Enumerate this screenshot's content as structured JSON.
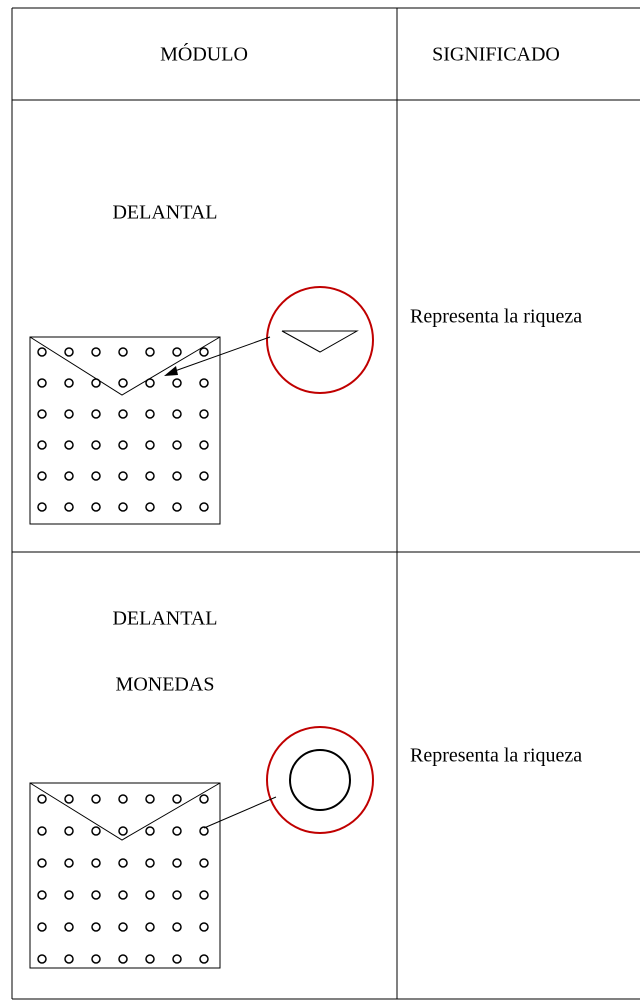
{
  "table": {
    "header": [
      "MÓDULO",
      "SIGNIFICADO"
    ],
    "rows": [
      {
        "module": [
          "DELANTAL"
        ],
        "meaning": "Representa la riqueza"
      },
      {
        "module": [
          "DELANTAL",
          "MONEDAS"
        ],
        "meaning": "Representa la riqueza"
      }
    ]
  }
}
